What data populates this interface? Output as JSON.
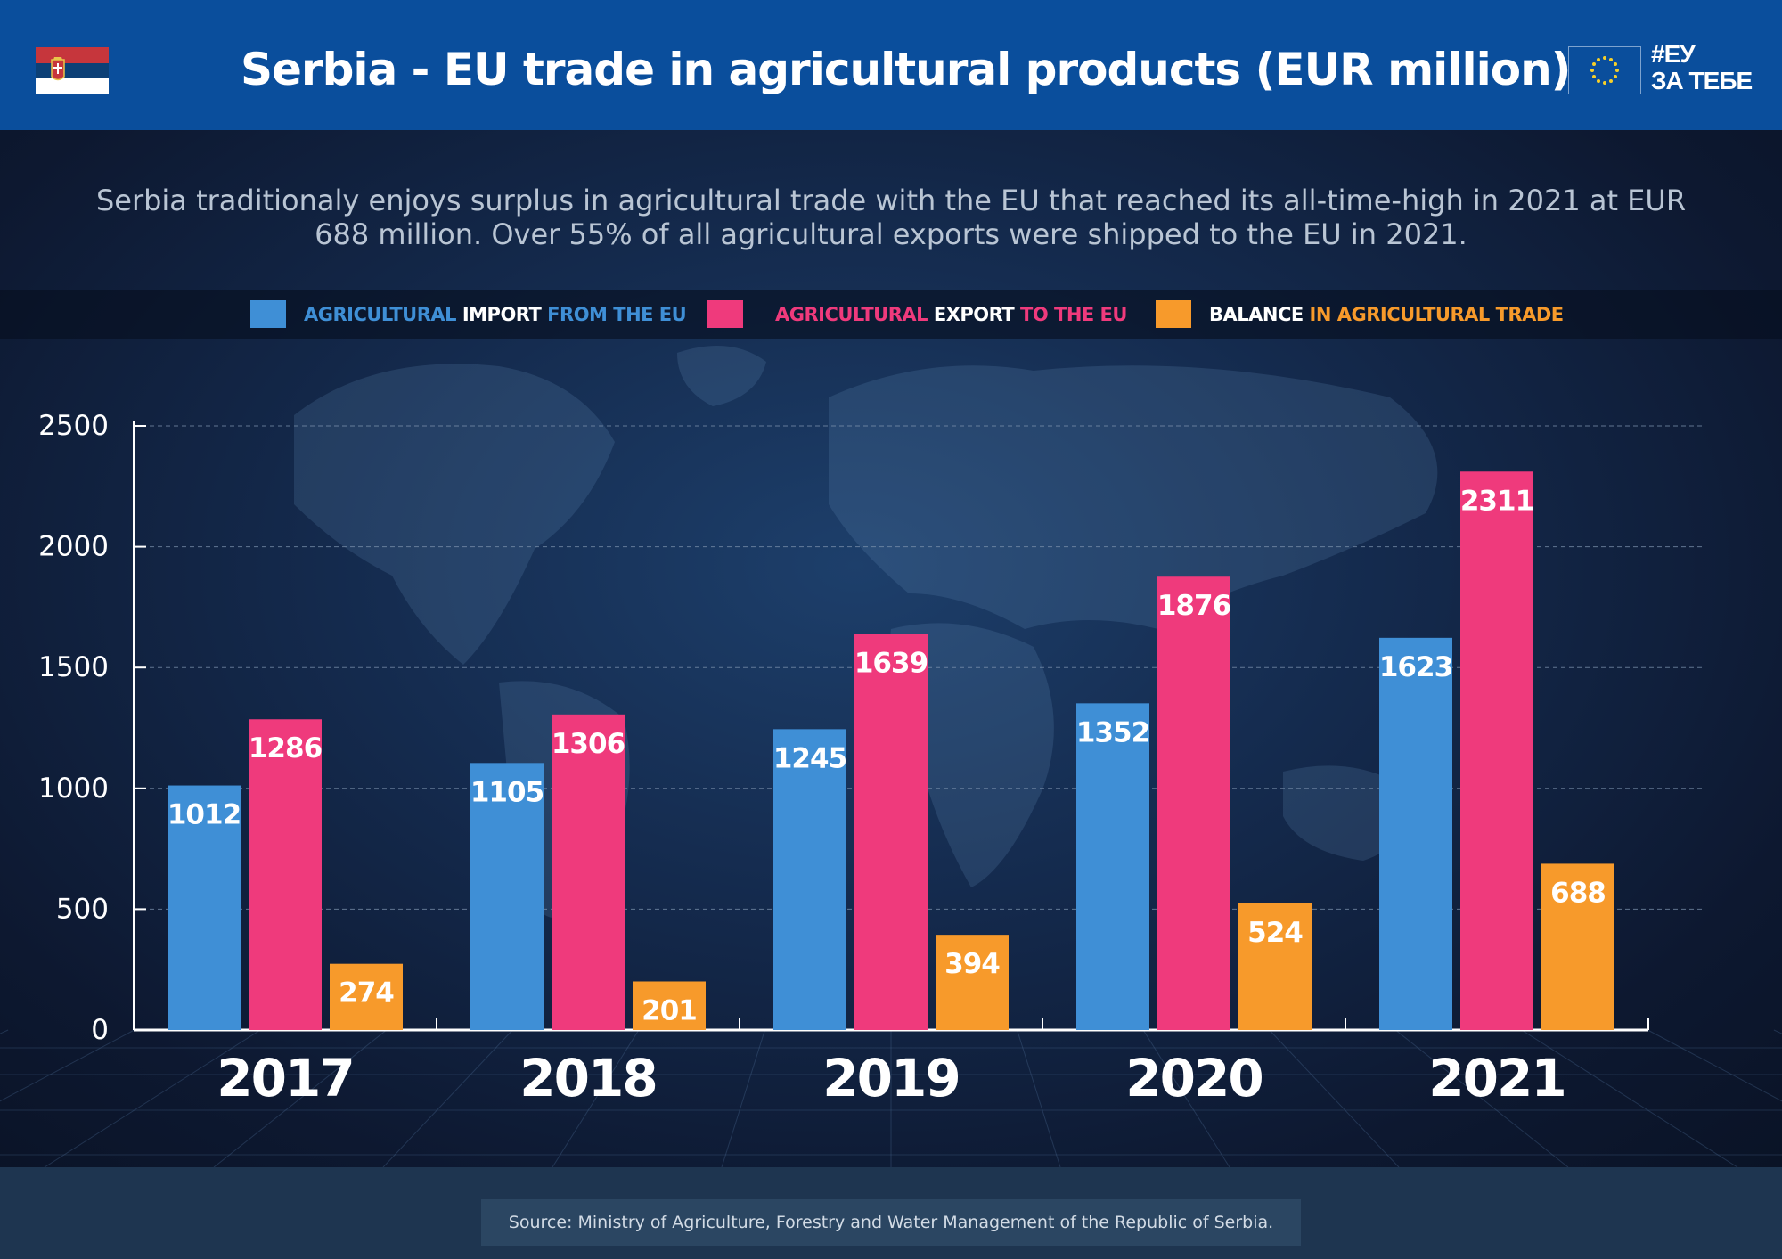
{
  "header": {
    "title": "Serbia - EU trade in agricultural products (EUR million)",
    "brand_line1": "#ЕУ",
    "brand_line2": "ЗА ТЕБЕ"
  },
  "subtitle": "Serbia traditionaly enjoys surplus in agricultural trade with the EU that reached its all-time-high in 2021 at EUR 688 million. Over 55% of all agricultural exports were shipped to the EU in 2021.",
  "legend": [
    {
      "parts": [
        {
          "text": "AGRICULTURAL ",
          "color": "#3f8fd6"
        },
        {
          "text": "IMPORT ",
          "color": "#ffffff"
        },
        {
          "text": "FROM THE EU",
          "color": "#3f8fd6"
        }
      ]
    },
    {
      "parts": [
        {
          "text": "AGRICULTURAL ",
          "color": "#ef3a7c"
        },
        {
          "text": "EXPORT ",
          "color": "#ffffff"
        },
        {
          "text": "TO THE EU",
          "color": "#ef3a7c"
        }
      ]
    },
    {
      "parts": [
        {
          "text": "BALANCE ",
          "color": "#ffffff"
        },
        {
          "text": "IN AGRICULTURAL TRADE",
          "color": "#f79a2b"
        }
      ]
    }
  ],
  "colors": {
    "import": "#3f8fd6",
    "export": "#ef3a7c",
    "balance": "#f79a2b",
    "header_bg": "#0a4e9c",
    "background": "#101c33"
  },
  "chart_data": {
    "type": "bar",
    "categories": [
      "2017",
      "2018",
      "2019",
      "2020",
      "2021"
    ],
    "series": [
      {
        "values": [
          1012,
          1105,
          1245,
          1352,
          1623
        ]
      },
      {
        "values": [
          1286,
          1306,
          1639,
          1876,
          2311
        ]
      },
      {
        "values": [
          274,
          201,
          394,
          524,
          688
        ]
      }
    ],
    "ylim": [
      0,
      2500
    ],
    "yticks": [
      0,
      500,
      1000,
      1500,
      2000,
      2500
    ],
    "grid": true,
    "legend_position": "top"
  },
  "footer": {
    "source": "Source: Ministry of Agriculture, Forestry and Water Management of the Republic of Serbia."
  }
}
